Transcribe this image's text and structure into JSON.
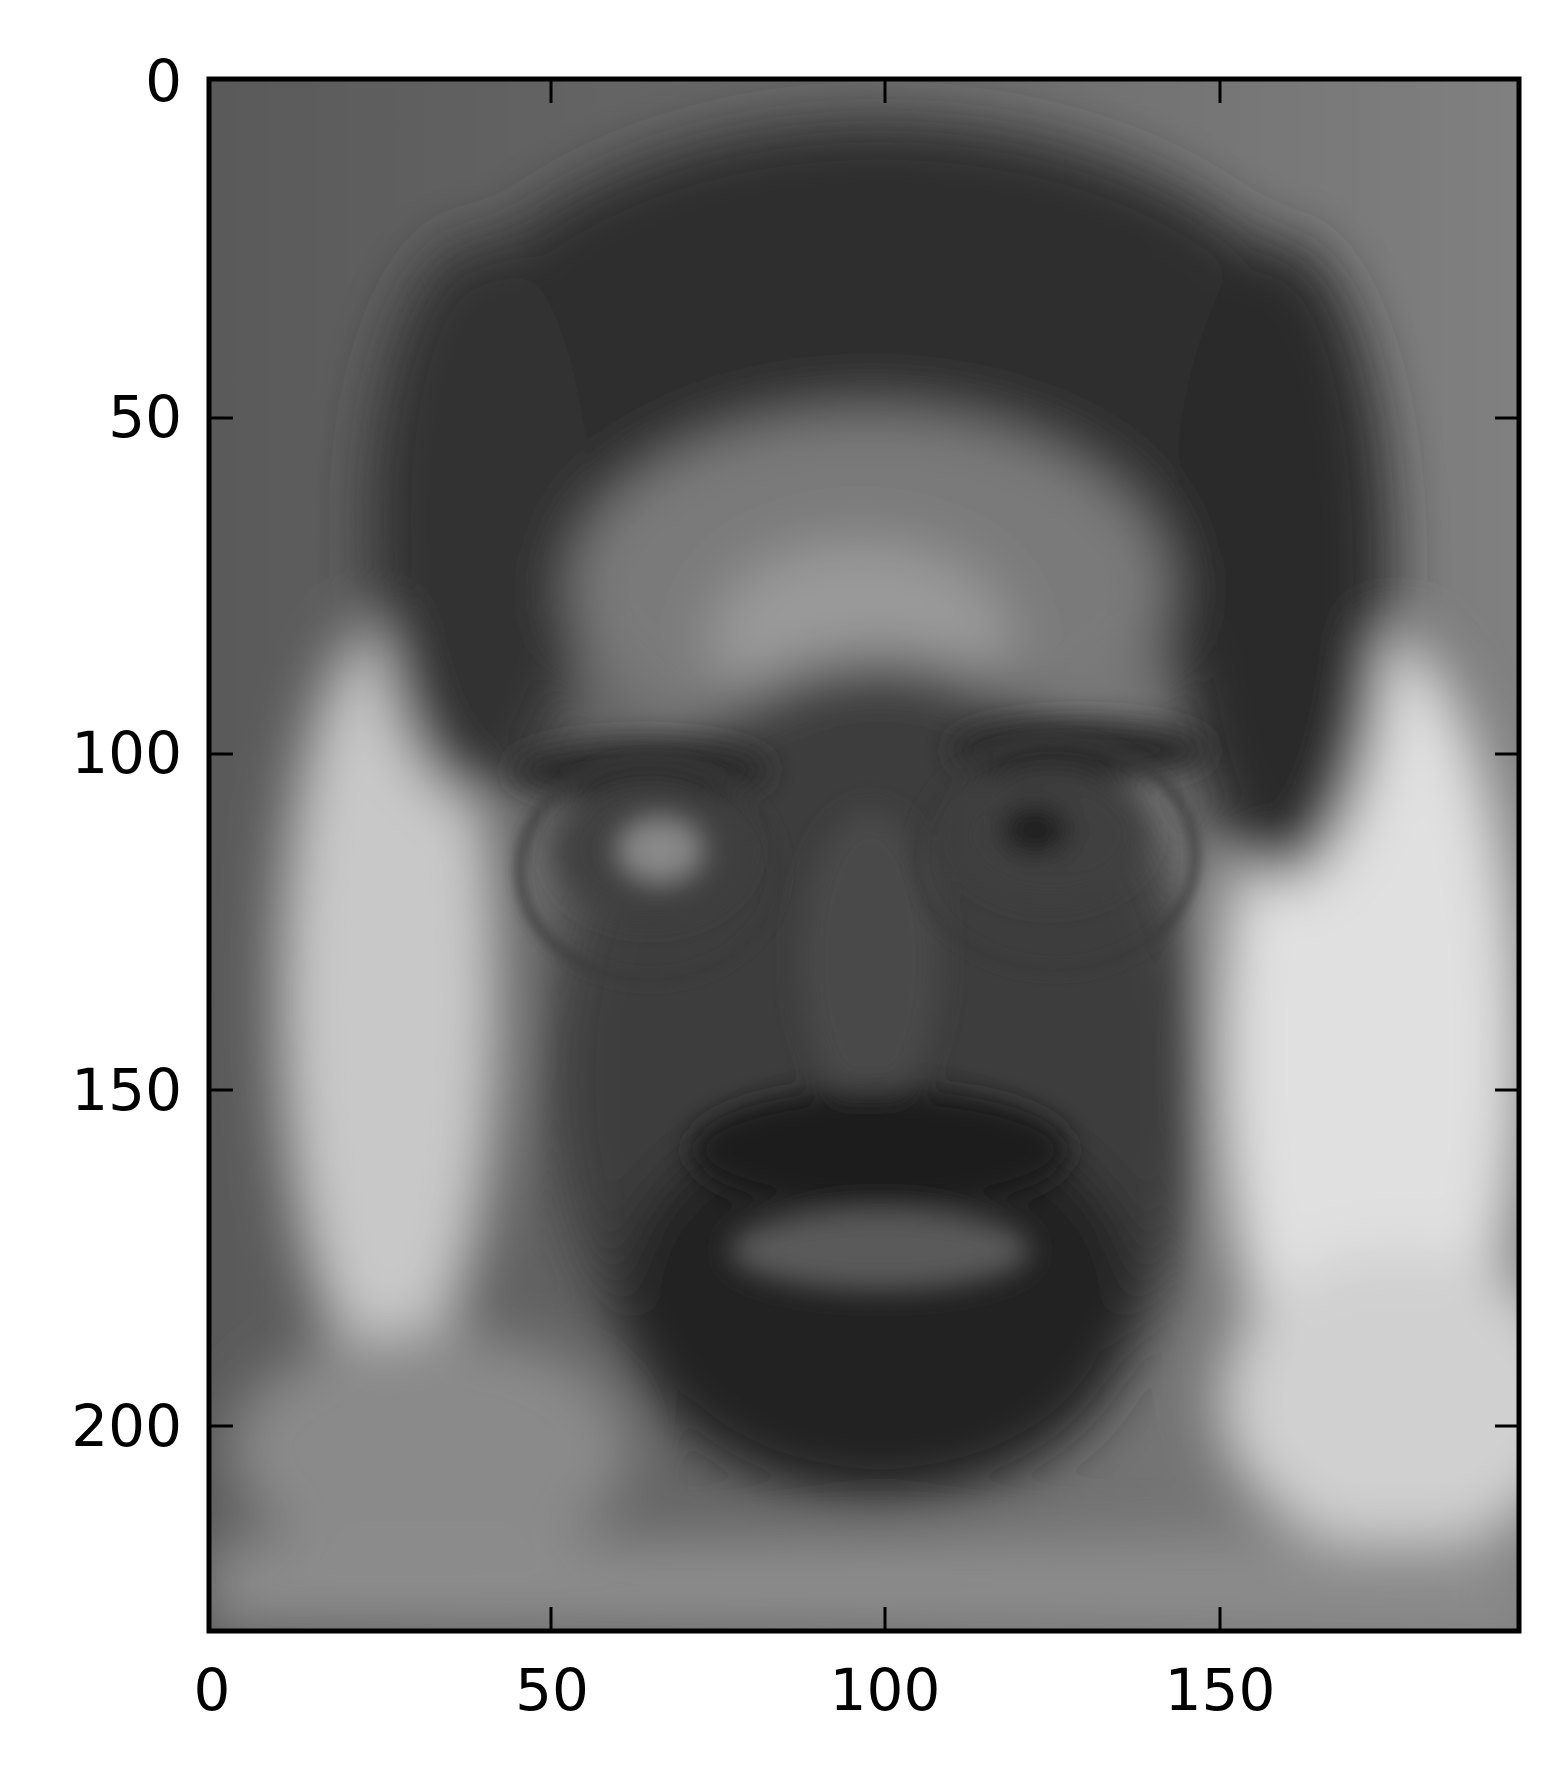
{
  "figure": {
    "title": "",
    "xlabel": "",
    "ylabel": "",
    "colormap": "gray",
    "image_content": "grayscale average face image",
    "x_axis": {
      "range": [
        0,
        195
      ],
      "ticks": [
        0,
        50,
        100,
        150
      ],
      "tick_labels": [
        "0",
        "50",
        "100",
        "150"
      ]
    },
    "y_axis": {
      "range": [
        0,
        231
      ],
      "inverted": true,
      "ticks": [
        0,
        50,
        100,
        150,
        200
      ],
      "tick_labels": [
        "0",
        "50",
        "100",
        "150",
        "200"
      ]
    },
    "grid": false,
    "legend": false
  }
}
